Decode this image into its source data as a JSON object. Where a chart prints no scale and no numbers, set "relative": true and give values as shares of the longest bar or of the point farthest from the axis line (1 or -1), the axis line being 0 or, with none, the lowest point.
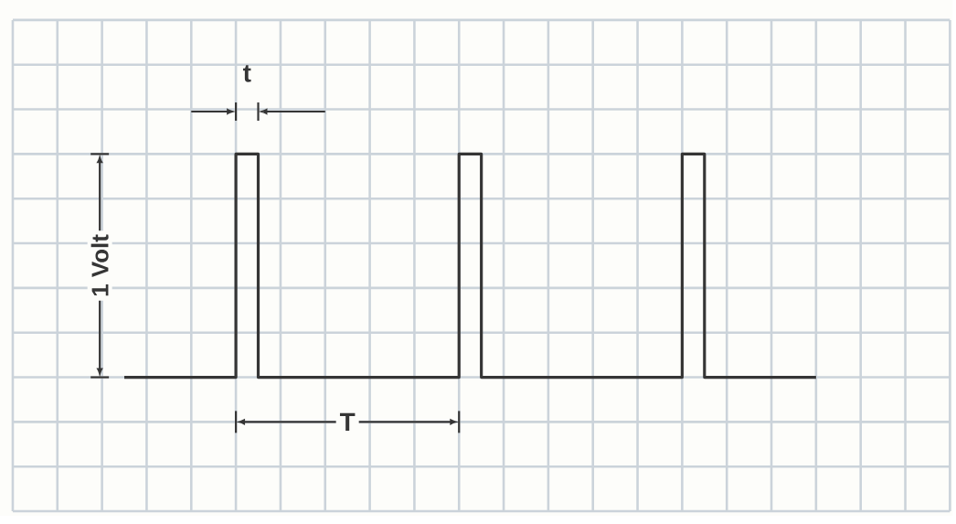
{
  "chart_data": {
    "type": "step",
    "relative": true,
    "categories": [
      null,
      null,
      null,
      null,
      null,
      null,
      null,
      null,
      null,
      null,
      null,
      null,
      null,
      null,
      null,
      null,
      null,
      null,
      null,
      null,
      null,
      null,
      null,
      null,
      null,
      null,
      null,
      null,
      null,
      null,
      null,
      null
    ],
    "values": [
      0,
      0,
      0,
      0,
      0,
      1,
      0,
      0,
      0,
      0,
      0,
      0,
      0,
      0,
      0,
      1,
      0,
      0,
      0,
      0,
      0,
      0,
      0,
      0,
      0,
      1,
      0,
      0,
      0,
      0,
      0,
      0
    ],
    "color": "#353535",
    "annotations": [
      "t",
      "1 Volt",
      "T"
    ],
    "grid": true,
    "marker": "none",
    "line_style": "solid"
  }
}
